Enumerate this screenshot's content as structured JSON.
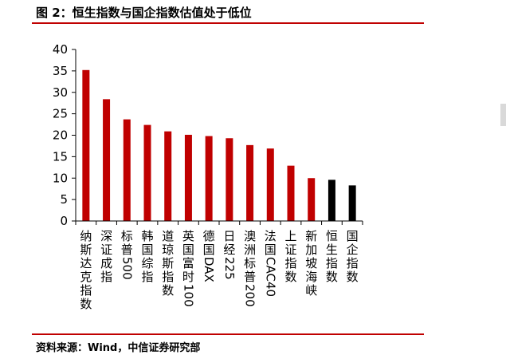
{
  "title": "图 2：恒生指数与国企指数估值处于低位",
  "source": "资料来源：Wind，中信证券研究部",
  "colors": {
    "accent": "#c00000",
    "highlight": "#000000",
    "axis": "#000000"
  },
  "chart_data": {
    "type": "bar",
    "categories": [
      "纳斯达克指数",
      "深证成指",
      "标普500",
      "韩国综指",
      "道琼斯指数",
      "英国富时100",
      "德国DAX",
      "日经225",
      "澳洲标普200",
      "法国CAC40",
      "上证指数",
      "新加坡海峡",
      "恒生指数",
      "国企指数"
    ],
    "values": [
      35.2,
      28.4,
      23.7,
      22.4,
      20.9,
      20.1,
      19.8,
      19.3,
      17.7,
      16.9,
      12.9,
      10.0,
      9.6,
      8.3
    ],
    "bar_colors": [
      "#c00000",
      "#c00000",
      "#c00000",
      "#c00000",
      "#c00000",
      "#c00000",
      "#c00000",
      "#c00000",
      "#c00000",
      "#c00000",
      "#c00000",
      "#c00000",
      "#000000",
      "#000000"
    ],
    "ylim": [
      0,
      40
    ],
    "yticks": [
      0,
      5,
      10,
      15,
      20,
      25,
      30,
      35,
      40
    ],
    "grid": false,
    "legend": "none"
  }
}
